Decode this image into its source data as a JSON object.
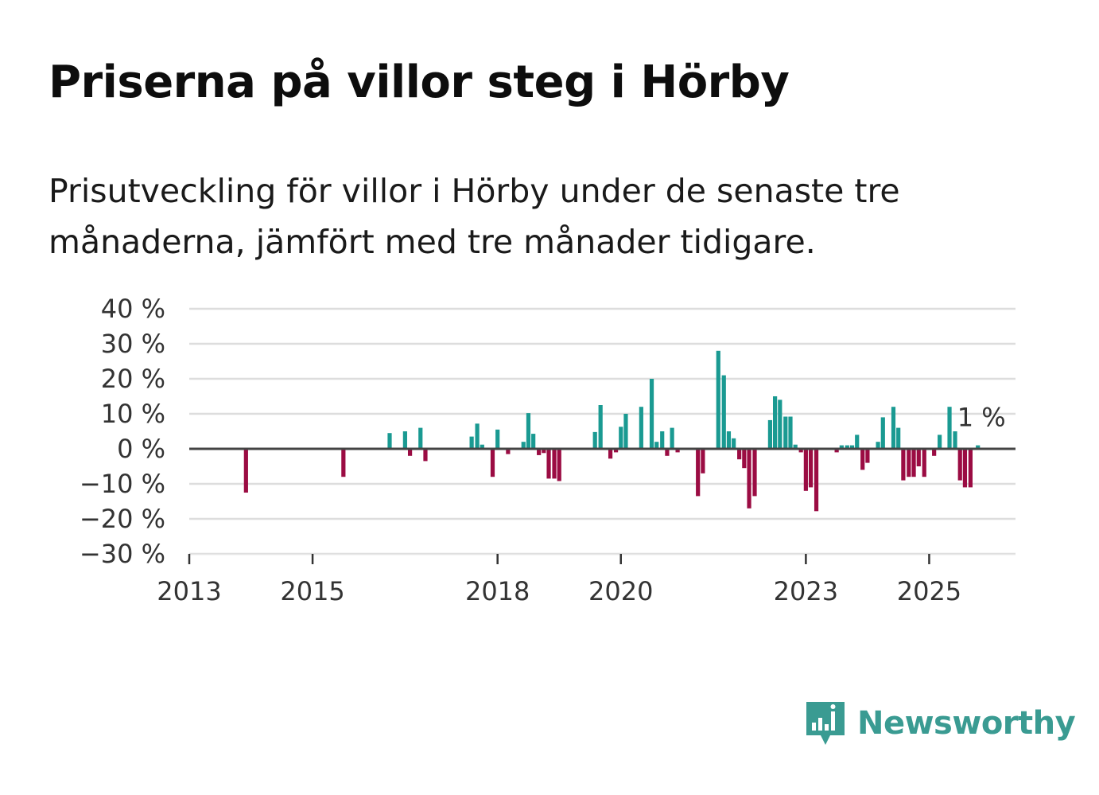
{
  "title": "Priserna på villor steg i Hörby",
  "subtitle": "Prisutveckling för villor i Hörby under de senaste tre månaderna, jämfört med tre månader tidigare.",
  "brand": {
    "name": "Newsworthy",
    "color": "#3a9b92",
    "icon": "newsworthy-logo-icon"
  },
  "colors": {
    "positive": "#1a9a92",
    "negative": "#9b0c43",
    "grid": "#dddddd",
    "zero": "#444444"
  },
  "chart_data": {
    "type": "bar",
    "title": "Priserna på villor steg i Hörby",
    "xlabel": "",
    "ylabel": "",
    "ylim": [
      -30,
      40
    ],
    "xlim": [
      2013.0,
      2026.4
    ],
    "y_ticks": [
      40,
      30,
      20,
      10,
      0,
      -10,
      -20,
      -30
    ],
    "y_tick_labels": [
      "40 %",
      "30 %",
      "20 %",
      "10 %",
      "0 %",
      "−10 %",
      "−20 %",
      "−30 %"
    ],
    "x_ticks": [
      2013,
      2015,
      2018,
      2020,
      2023,
      2025
    ],
    "x_tick_labels": [
      "2013",
      "2015",
      "2018",
      "2020",
      "2023",
      "2025"
    ],
    "annotation": {
      "text": "1 %",
      "x": 2025.79,
      "y": 1
    },
    "series": [
      {
        "name": "Prisutveckling",
        "points": [
          {
            "x": 2013.92,
            "y": -12.5
          },
          {
            "x": 2015.5,
            "y": -8
          },
          {
            "x": 2016.25,
            "y": 4.5
          },
          {
            "x": 2016.5,
            "y": 5
          },
          {
            "x": 2016.58,
            "y": -2
          },
          {
            "x": 2016.75,
            "y": 6
          },
          {
            "x": 2016.83,
            "y": -3.5
          },
          {
            "x": 2017.58,
            "y": 3.5
          },
          {
            "x": 2017.67,
            "y": 7.2
          },
          {
            "x": 2017.75,
            "y": 1.2
          },
          {
            "x": 2017.92,
            "y": -8
          },
          {
            "x": 2018.0,
            "y": 5.5
          },
          {
            "x": 2018.17,
            "y": -1.5
          },
          {
            "x": 2018.42,
            "y": 2
          },
          {
            "x": 2018.5,
            "y": 10.2
          },
          {
            "x": 2018.58,
            "y": 4.3
          },
          {
            "x": 2018.67,
            "y": -1.8
          },
          {
            "x": 2018.75,
            "y": -1.2
          },
          {
            "x": 2018.83,
            "y": -8.5
          },
          {
            "x": 2018.92,
            "y": -8.5
          },
          {
            "x": 2019.0,
            "y": -9.2
          },
          {
            "x": 2019.58,
            "y": 4.8
          },
          {
            "x": 2019.67,
            "y": 12.5
          },
          {
            "x": 2019.83,
            "y": -2.8
          },
          {
            "x": 2019.92,
            "y": -1
          },
          {
            "x": 2020.0,
            "y": 6.3
          },
          {
            "x": 2020.08,
            "y": 10
          },
          {
            "x": 2020.33,
            "y": 12
          },
          {
            "x": 2020.5,
            "y": 20
          },
          {
            "x": 2020.58,
            "y": 2
          },
          {
            "x": 2020.67,
            "y": 5
          },
          {
            "x": 2020.75,
            "y": -2
          },
          {
            "x": 2020.83,
            "y": 6
          },
          {
            "x": 2020.92,
            "y": -1
          },
          {
            "x": 2021.25,
            "y": -13.5
          },
          {
            "x": 2021.33,
            "y": -7
          },
          {
            "x": 2021.58,
            "y": 28
          },
          {
            "x": 2021.67,
            "y": 21
          },
          {
            "x": 2021.75,
            "y": 5
          },
          {
            "x": 2021.83,
            "y": 3
          },
          {
            "x": 2021.92,
            "y": -3
          },
          {
            "x": 2022.0,
            "y": -5.5
          },
          {
            "x": 2022.08,
            "y": -17
          },
          {
            "x": 2022.17,
            "y": -13.5
          },
          {
            "x": 2022.42,
            "y": 8.2
          },
          {
            "x": 2022.5,
            "y": 15
          },
          {
            "x": 2022.58,
            "y": 14
          },
          {
            "x": 2022.67,
            "y": 9.2
          },
          {
            "x": 2022.75,
            "y": 9.2
          },
          {
            "x": 2022.83,
            "y": 1.2
          },
          {
            "x": 2022.92,
            "y": -1
          },
          {
            "x": 2023.0,
            "y": -12
          },
          {
            "x": 2023.08,
            "y": -11
          },
          {
            "x": 2023.17,
            "y": -17.8
          },
          {
            "x": 2023.5,
            "y": -1
          },
          {
            "x": 2023.58,
            "y": 1
          },
          {
            "x": 2023.67,
            "y": 1
          },
          {
            "x": 2023.75,
            "y": 1
          },
          {
            "x": 2023.83,
            "y": 4
          },
          {
            "x": 2023.92,
            "y": -6
          },
          {
            "x": 2024.0,
            "y": -4
          },
          {
            "x": 2024.17,
            "y": 2
          },
          {
            "x": 2024.25,
            "y": 9
          },
          {
            "x": 2024.42,
            "y": 12
          },
          {
            "x": 2024.5,
            "y": 6
          },
          {
            "x": 2024.58,
            "y": -9
          },
          {
            "x": 2024.67,
            "y": -8
          },
          {
            "x": 2024.75,
            "y": -8
          },
          {
            "x": 2024.83,
            "y": -5
          },
          {
            "x": 2024.92,
            "y": -8
          },
          {
            "x": 2025.08,
            "y": -2
          },
          {
            "x": 2025.17,
            "y": 4
          },
          {
            "x": 2025.33,
            "y": 12
          },
          {
            "x": 2025.42,
            "y": 5
          },
          {
            "x": 2025.5,
            "y": -9
          },
          {
            "x": 2025.58,
            "y": -11
          },
          {
            "x": 2025.67,
            "y": -11
          },
          {
            "x": 2025.79,
            "y": 1
          }
        ]
      }
    ]
  }
}
